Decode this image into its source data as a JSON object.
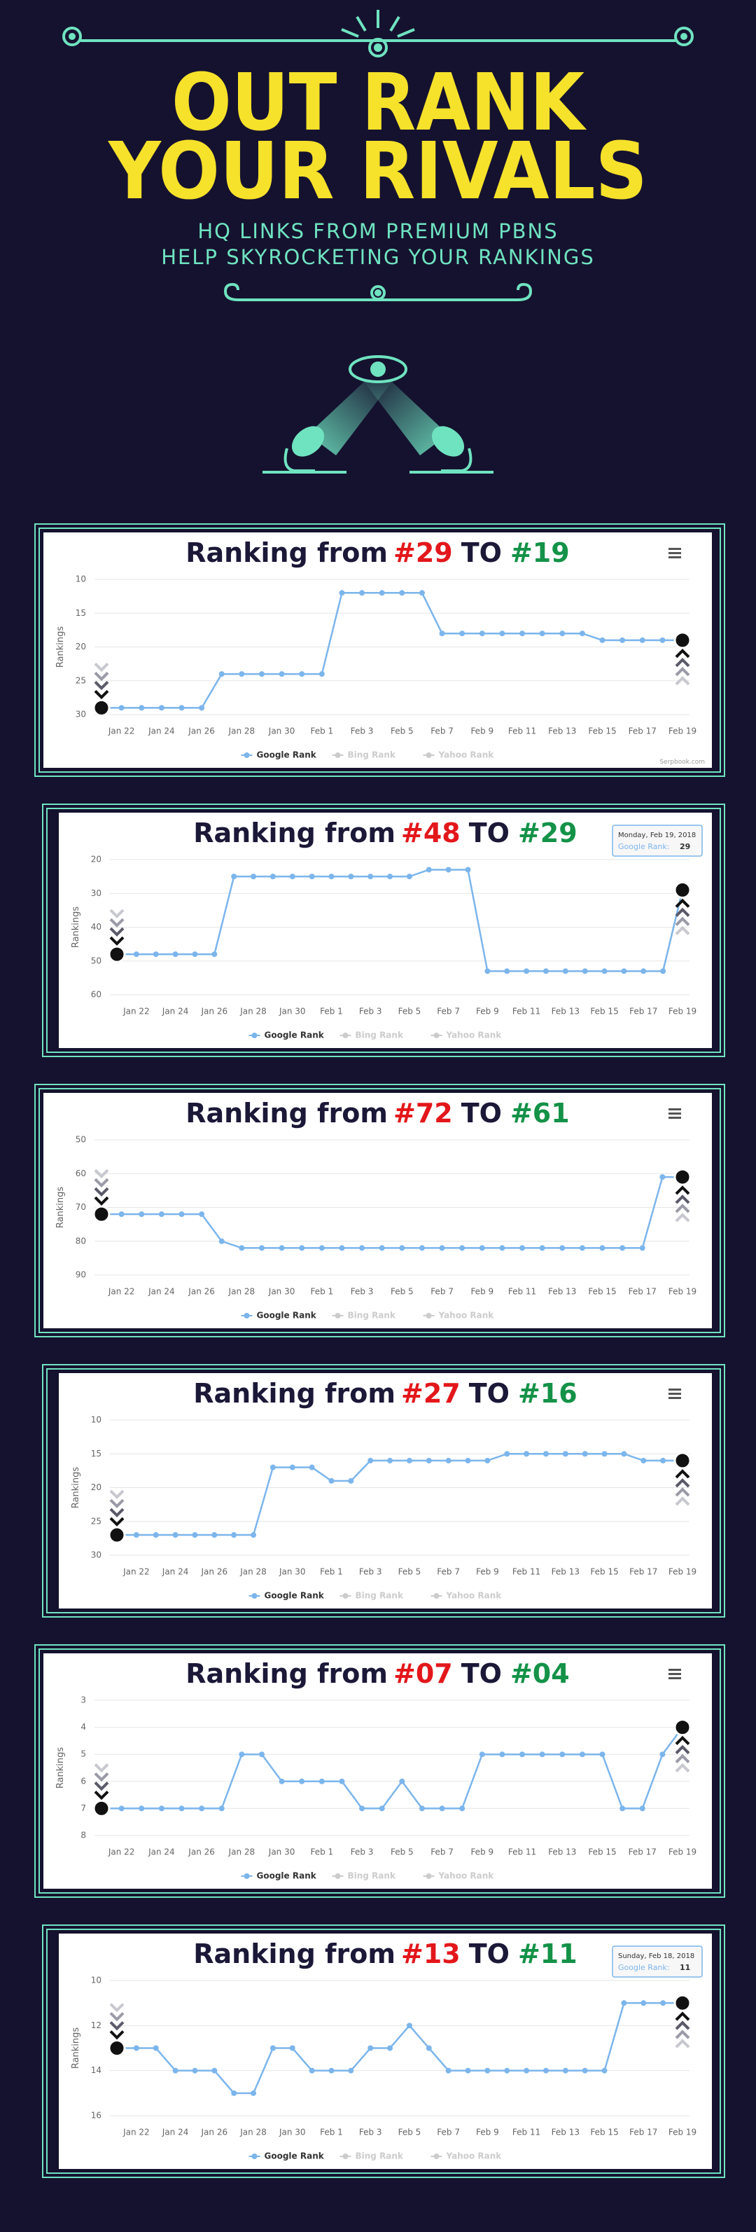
{
  "header": {
    "title_line1": "OUT RANK",
    "title_line2": "YOUR RIVALS",
    "subtitle_line1": "HQ LINKS FROM PREMIUM PBNS",
    "subtitle_line2": "HELP SKYROCKETING YOUR RANKINGS"
  },
  "chart_data": [
    {
      "type": "line",
      "title": {
        "text": "Ranking from",
        "from": "#29",
        "join": "TO",
        "to": "#19"
      },
      "y_label": "Rankings",
      "reversed": true,
      "categories": [
        null,
        "Jan 22",
        null,
        "Jan 24",
        null,
        "Jan 26",
        null,
        "Jan 28",
        null,
        "Jan 30",
        null,
        "Feb 1",
        null,
        "Feb 3",
        null,
        "Feb 5",
        null,
        "Feb 7",
        null,
        "Feb 9",
        null,
        "Feb 11",
        null,
        "Feb 13",
        null,
        "Feb 15",
        null,
        "Feb 17",
        null,
        "Feb 19"
      ],
      "series": [
        {
          "name": "Google Rank",
          "color": "#7cb5ec",
          "values": [
            29,
            29,
            29,
            29,
            29,
            29,
            24,
            24,
            24,
            24,
            24,
            24,
            12,
            12,
            12,
            12,
            12,
            18,
            18,
            18,
            18,
            18,
            18,
            18,
            18,
            19,
            19,
            19,
            19,
            19
          ]
        },
        {
          "name": "Bing Rank",
          "color": "#cccccc",
          "visible": false
        },
        {
          "name": "Yahoo Rank",
          "color": "#cccccc",
          "visible": false
        }
      ],
      "ylim": [
        10,
        30
      ],
      "yticks": [
        10,
        15,
        20,
        25,
        30
      ],
      "grid": true,
      "credit": "Serpbook.com"
    },
    {
      "type": "line",
      "title": {
        "text": "Ranking from",
        "from": "#48",
        "join": "TO",
        "to": "#29"
      },
      "y_label": "Rankings",
      "reversed": true,
      "categories": [
        null,
        "Jan 22",
        null,
        "Jan 24",
        null,
        "Jan 26",
        null,
        "Jan 28",
        null,
        "Jan 30",
        null,
        "Feb 1",
        null,
        "Feb 3",
        null,
        "Feb 5",
        null,
        "Feb 7",
        null,
        "Feb 9",
        null,
        "Feb 11",
        null,
        "Feb 13",
        null,
        "Feb 15",
        null,
        "Feb 17",
        null,
        "Feb 19"
      ],
      "series": [
        {
          "name": "Google Rank",
          "color": "#7cb5ec",
          "values": [
            48,
            48,
            48,
            48,
            48,
            48,
            25,
            25,
            25,
            25,
            25,
            25,
            25,
            25,
            25,
            25,
            23,
            23,
            23,
            53,
            53,
            53,
            53,
            53,
            53,
            53,
            53,
            53,
            53,
            29
          ]
        },
        {
          "name": "Bing Rank",
          "color": "#cccccc",
          "visible": false
        },
        {
          "name": "Yahoo Rank",
          "color": "#cccccc",
          "visible": false
        }
      ],
      "ylim": [
        20,
        60
      ],
      "yticks": [
        20,
        30,
        40,
        50,
        60
      ],
      "grid": true,
      "tooltip": {
        "date": "Monday, Feb 19, 2018",
        "label": "Google Rank:",
        "value": 29
      }
    },
    {
      "type": "line",
      "title": {
        "text": "Ranking from",
        "from": "#72",
        "join": "TO",
        "to": "#61"
      },
      "y_label": "Rankings",
      "reversed": true,
      "categories": [
        null,
        "Jan 22",
        null,
        "Jan 24",
        null,
        "Jan 26",
        null,
        "Jan 28",
        null,
        "Jan 30",
        null,
        "Feb 1",
        null,
        "Feb 3",
        null,
        "Feb 5",
        null,
        "Feb 7",
        null,
        "Feb 9",
        null,
        "Feb 11",
        null,
        "Feb 13",
        null,
        "Feb 15",
        null,
        "Feb 17",
        null,
        "Feb 19"
      ],
      "series": [
        {
          "name": "Google Rank",
          "color": "#7cb5ec",
          "values": [
            72,
            72,
            72,
            72,
            72,
            72,
            80,
            82,
            82,
            82,
            82,
            82,
            82,
            82,
            82,
            82,
            82,
            82,
            82,
            82,
            82,
            82,
            82,
            82,
            82,
            82,
            82,
            82,
            61,
            61
          ]
        },
        {
          "name": "Bing Rank",
          "color": "#cccccc",
          "visible": false
        },
        {
          "name": "Yahoo Rank",
          "color": "#cccccc",
          "visible": false
        }
      ],
      "ylim": [
        50,
        90
      ],
      "yticks": [
        50,
        60,
        70,
        80,
        90
      ],
      "grid": true
    },
    {
      "type": "line",
      "title": {
        "text": "Ranking from",
        "from": "#27",
        "join": "TO",
        "to": "#16"
      },
      "y_label": "Rankings",
      "reversed": true,
      "categories": [
        null,
        "Jan 22",
        null,
        "Jan 24",
        null,
        "Jan 26",
        null,
        "Jan 28",
        null,
        "Jan 30",
        null,
        "Feb 1",
        null,
        "Feb 3",
        null,
        "Feb 5",
        null,
        "Feb 7",
        null,
        "Feb 9",
        null,
        "Feb 11",
        null,
        "Feb 13",
        null,
        "Feb 15",
        null,
        "Feb 17",
        null,
        "Feb 19"
      ],
      "series": [
        {
          "name": "Google Rank",
          "color": "#7cb5ec",
          "values": [
            27,
            27,
            27,
            27,
            27,
            27,
            27,
            27,
            17,
            17,
            17,
            19,
            19,
            16,
            16,
            16,
            16,
            16,
            16,
            16,
            15,
            15,
            15,
            15,
            15,
            15,
            15,
            16,
            16,
            16
          ]
        },
        {
          "name": "Bing Rank",
          "color": "#cccccc",
          "visible": false
        },
        {
          "name": "Yahoo Rank",
          "color": "#cccccc",
          "visible": false
        }
      ],
      "ylim": [
        10,
        30
      ],
      "yticks": [
        10,
        15,
        20,
        25,
        30
      ],
      "grid": true
    },
    {
      "type": "line",
      "title": {
        "text": "Ranking from",
        "from": "#07",
        "join": "TO",
        "to": "#04"
      },
      "y_label": "Rankings",
      "reversed": true,
      "categories": [
        null,
        "Jan 22",
        null,
        "Jan 24",
        null,
        "Jan 26",
        null,
        "Jan 28",
        null,
        "Jan 30",
        null,
        "Feb 1",
        null,
        "Feb 3",
        null,
        "Feb 5",
        null,
        "Feb 7",
        null,
        "Feb 9",
        null,
        "Feb 11",
        null,
        "Feb 13",
        null,
        "Feb 15",
        null,
        "Feb 17",
        null,
        "Feb 19"
      ],
      "series": [
        {
          "name": "Google Rank",
          "color": "#7cb5ec",
          "values": [
            7,
            7,
            7,
            7,
            7,
            7,
            7,
            5,
            5,
            6,
            6,
            6,
            6,
            7,
            7,
            6,
            7,
            7,
            7,
            5,
            5,
            5,
            5,
            5,
            5,
            5,
            7,
            7,
            5,
            4
          ]
        },
        {
          "name": "Bing Rank",
          "color": "#cccccc",
          "visible": false
        },
        {
          "name": "Yahoo Rank",
          "color": "#cccccc",
          "visible": false
        }
      ],
      "ylim": [
        3,
        8
      ],
      "yticks": [
        3,
        4,
        5,
        6,
        7,
        8
      ],
      "grid": true
    },
    {
      "type": "line",
      "title": {
        "text": "Ranking from",
        "from": "#13",
        "join": "TO",
        "to": "#11"
      },
      "y_label": "Rankings",
      "reversed": true,
      "categories": [
        null,
        "Jan 22",
        null,
        "Jan 24",
        null,
        "Jan 26",
        null,
        "Jan 28",
        null,
        "Jan 30",
        null,
        "Feb 1",
        null,
        "Feb 3",
        null,
        "Feb 5",
        null,
        "Feb 7",
        null,
        "Feb 9",
        null,
        "Feb 11",
        null,
        "Feb 13",
        null,
        "Feb 15",
        null,
        "Feb 17",
        null,
        "Feb 19"
      ],
      "series": [
        {
          "name": "Google Rank",
          "color": "#7cb5ec",
          "values": [
            13,
            13,
            13,
            14,
            14,
            14,
            15,
            15,
            13,
            13,
            14,
            14,
            14,
            13,
            13,
            12,
            13,
            14,
            14,
            14,
            14,
            14,
            14,
            14,
            14,
            14,
            11,
            11,
            11,
            11
          ]
        },
        {
          "name": "Bing Rank",
          "color": "#cccccc",
          "visible": false
        },
        {
          "name": "Yahoo Rank",
          "color": "#cccccc",
          "visible": false
        }
      ],
      "ylim": [
        10,
        16
      ],
      "yticks": [
        10,
        12,
        14,
        16
      ],
      "grid": true,
      "tooltip": {
        "date": "Sunday, Feb 18, 2018",
        "label": "Google Rank:",
        "value": 11
      }
    }
  ]
}
